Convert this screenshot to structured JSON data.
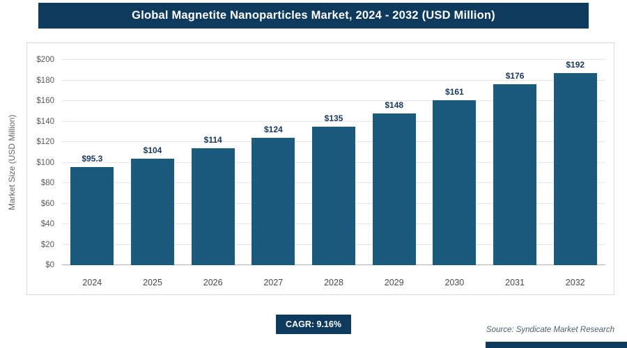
{
  "header": {
    "title": "Global Magnetite Nanoparticles Market, 2024 - 2032 (USD Million)"
  },
  "chart_data": {
    "type": "bar",
    "title": "Global Magnetite Nanoparticles Market, 2024 - 2032 (USD Million)",
    "categories": [
      "2024",
      "2025",
      "2026",
      "2027",
      "2028",
      "2029",
      "2030",
      "2031",
      "2032"
    ],
    "values": [
      95.3,
      104,
      114,
      124,
      135,
      148,
      161,
      176,
      192
    ],
    "value_labels": [
      "$95.3",
      "$104",
      "$114",
      "$124",
      "$135",
      "$148",
      "$161",
      "$176",
      "$192"
    ],
    "ylabel": "Market Size (USD Million)",
    "xlabel": "",
    "ylim": [
      0,
      200
    ],
    "ytick_step": 20,
    "ytick_labels": [
      "$0",
      "$20",
      "$40",
      "$60",
      "$80",
      "$100",
      "$120",
      "$140",
      "$160",
      "$180",
      "$200"
    ],
    "grid": true,
    "legend": "none",
    "bar_color": "#1a5a7d"
  },
  "footer": {
    "cagr_label": "CAGR: 9.16%",
    "source": "Source: Syndicate Market Research"
  },
  "colors": {
    "navy": "#0e3a5e",
    "bar": "#1a5a7d",
    "grid": "#e4e4e4"
  }
}
